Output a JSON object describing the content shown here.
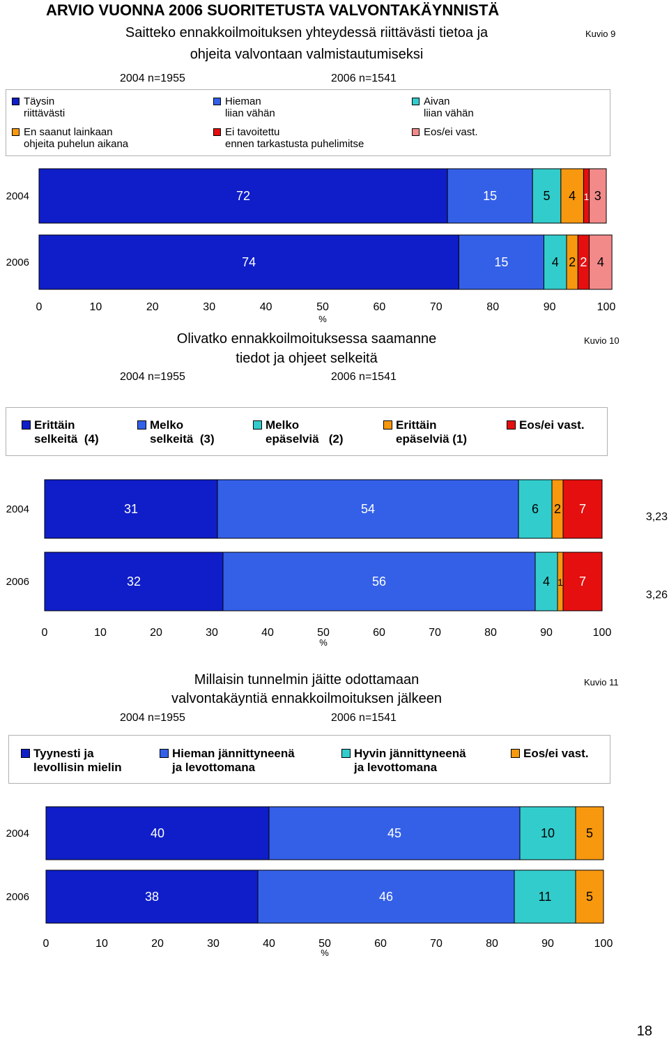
{
  "document": {
    "title": "ARVIO VUONNA 2006 SUORITETUSTA VALVONTAKÄYNNISTÄ",
    "page_number": "18"
  },
  "chart_data": [
    {
      "type": "bar",
      "orientation": "horizontal-stacked-100",
      "kuvio": "Kuvio 9",
      "title_lines": [
        "Saitteko ennakkoilmoituksen yhteydessä riittävästi tietoa ja",
        "ohjeita valvontaan valmistautumiseksi"
      ],
      "sample": [
        "2004 n=1955",
        "2006 n=1541"
      ],
      "categories": [
        "2004",
        "2006"
      ],
      "xlabel": "%",
      "xlim": [
        0,
        100
      ],
      "xticks": [
        "0",
        "10",
        "20",
        "30",
        "40",
        "50",
        "60",
        "70",
        "80",
        "90",
        "100"
      ],
      "series": [
        {
          "name": "Täysin\nriittävästi",
          "color": "#0f1ec8",
          "values": [
            72,
            74
          ]
        },
        {
          "name": "Hieman\nliian vähän",
          "color": "#3460e8",
          "values": [
            15,
            15
          ]
        },
        {
          "name": "Aivan\nliian vähän",
          "color": "#33cccc",
          "values": [
            5,
            4
          ]
        },
        {
          "name": "En saanut lainkaan\nohjeita puhelun aikana",
          "color": "#f7980f",
          "values": [
            4,
            2
          ]
        },
        {
          "name": "Ei tavoitettu\nennen tarkastusta puhelimitse",
          "color": "#e50f0f",
          "values": [
            1,
            2
          ]
        },
        {
          "name": "Eos/ei vast.",
          "color": "#f28a8a",
          "values": [
            3,
            4
          ]
        }
      ]
    },
    {
      "type": "bar",
      "orientation": "horizontal-stacked-100",
      "kuvio": "Kuvio 10",
      "title_lines": [
        "Olivatko ennakkoilmoituksessa saamanne",
        "tiedot ja ohjeet selkeitä"
      ],
      "sample": [
        "2004 n=1955",
        "2006 n=1541"
      ],
      "categories": [
        "2004",
        "2006"
      ],
      "xlabel": "%",
      "xlim": [
        0,
        100
      ],
      "xticks": [
        "0",
        "10",
        "20",
        "30",
        "40",
        "50",
        "60",
        "70",
        "80",
        "90",
        "100"
      ],
      "averages": [
        "3,23",
        "3,26"
      ],
      "series": [
        {
          "name": "Erittäin\nselkeitä  (4)",
          "color": "#0f1ec8",
          "values": [
            31,
            32
          ]
        },
        {
          "name": "Melko\nselkeitä  (3)",
          "color": "#3460e8",
          "values": [
            54,
            56
          ]
        },
        {
          "name": "Melko\nepäselviä   (2)",
          "color": "#33cccc",
          "values": [
            6,
            4
          ]
        },
        {
          "name": "Erittäin\nepäselviä (1)",
          "color": "#f7980f",
          "values": [
            2,
            1
          ]
        },
        {
          "name": "Eos/ei vast.",
          "color": "#e50f0f",
          "values": [
            7,
            7
          ]
        }
      ]
    },
    {
      "type": "bar",
      "orientation": "horizontal-stacked-100",
      "kuvio": "Kuvio 11",
      "title_lines": [
        "Millaisin tunnelmin jäitte odottamaan",
        "valvontakäyntiä ennakkoilmoituksen jälkeen"
      ],
      "sample": [
        "2004 n=1955",
        "2006 n=1541"
      ],
      "categories": [
        "2004",
        "2006"
      ],
      "xlabel": "%",
      "xlim": [
        0,
        100
      ],
      "xticks": [
        "0",
        "10",
        "20",
        "30",
        "40",
        "50",
        "60",
        "70",
        "80",
        "90",
        "100"
      ],
      "series": [
        {
          "name": "Tyynesti ja\nlevollisin mielin",
          "color": "#0f1ec8",
          "values": [
            40,
            38
          ]
        },
        {
          "name": "Hieman jännittyneenä\nja levottomana",
          "color": "#3460e8",
          "values": [
            45,
            46
          ]
        },
        {
          "name": "Hyvin jännittyneenä\nja levottomana",
          "color": "#33cccc",
          "values": [
            10,
            11
          ]
        },
        {
          "name": "Eos/ei vast.",
          "color": "#f7980f",
          "values": [
            5,
            5
          ]
        }
      ]
    }
  ]
}
